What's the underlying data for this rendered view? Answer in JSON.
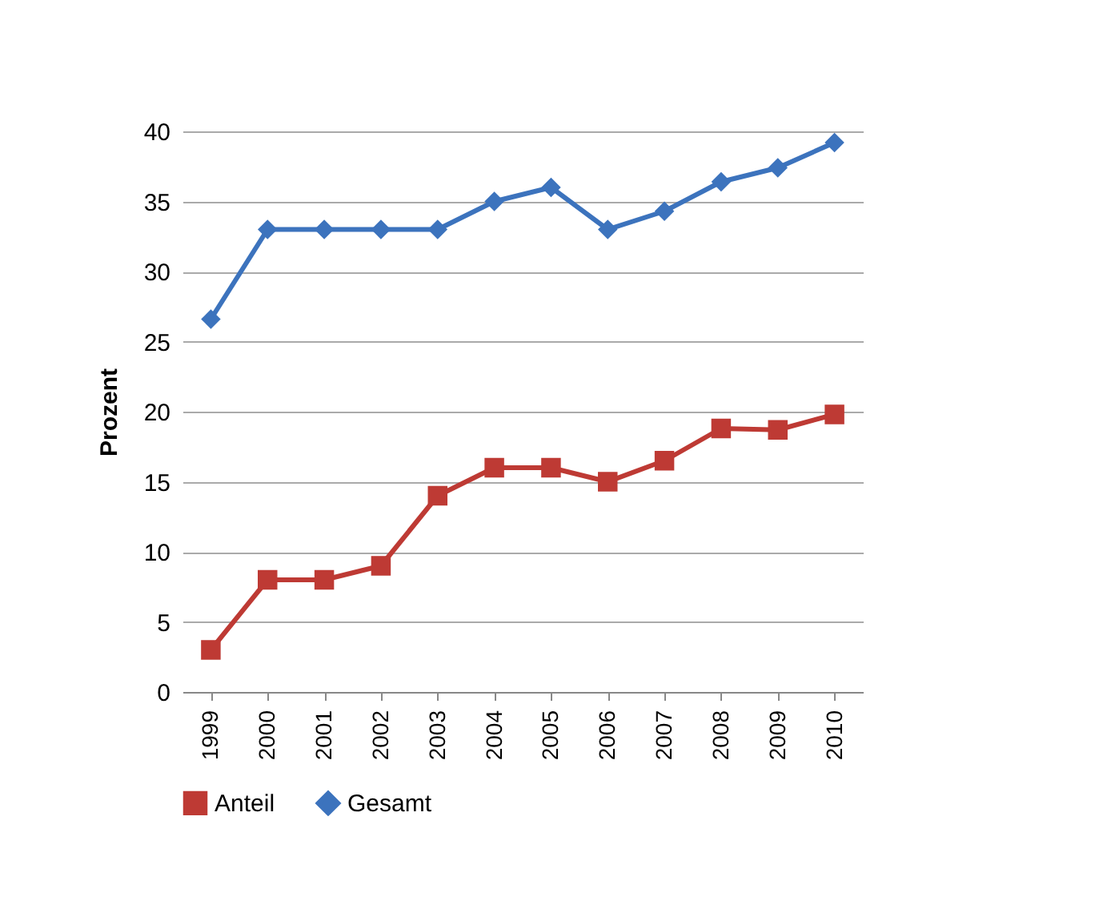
{
  "chart_data": {
    "type": "line",
    "ylabel": "Prozent",
    "categories": [
      "1999",
      "2000",
      "2001",
      "2002",
      "2003",
      "2004",
      "2005",
      "2006",
      "2007",
      "2008",
      "2009",
      "2010"
    ],
    "series": [
      {
        "name": "Anteil",
        "color": "#be3a34",
        "marker": "square",
        "values": [
          3,
          8,
          8,
          9,
          14,
          16,
          16,
          15,
          16.5,
          18.8,
          18.7,
          19.8
        ]
      },
      {
        "name": "Gesamt",
        "color": "#3c73bd",
        "marker": "diamond",
        "values": [
          26.6,
          33,
          33,
          33,
          33,
          35,
          36,
          33,
          34.3,
          36.4,
          37.4,
          39.2
        ]
      }
    ],
    "ylim": [
      0,
      40
    ],
    "yticks": [
      0,
      5,
      10,
      15,
      20,
      25,
      30,
      35,
      40
    ],
    "grid": "y",
    "legend": "bottom",
    "line_style": "solid"
  }
}
